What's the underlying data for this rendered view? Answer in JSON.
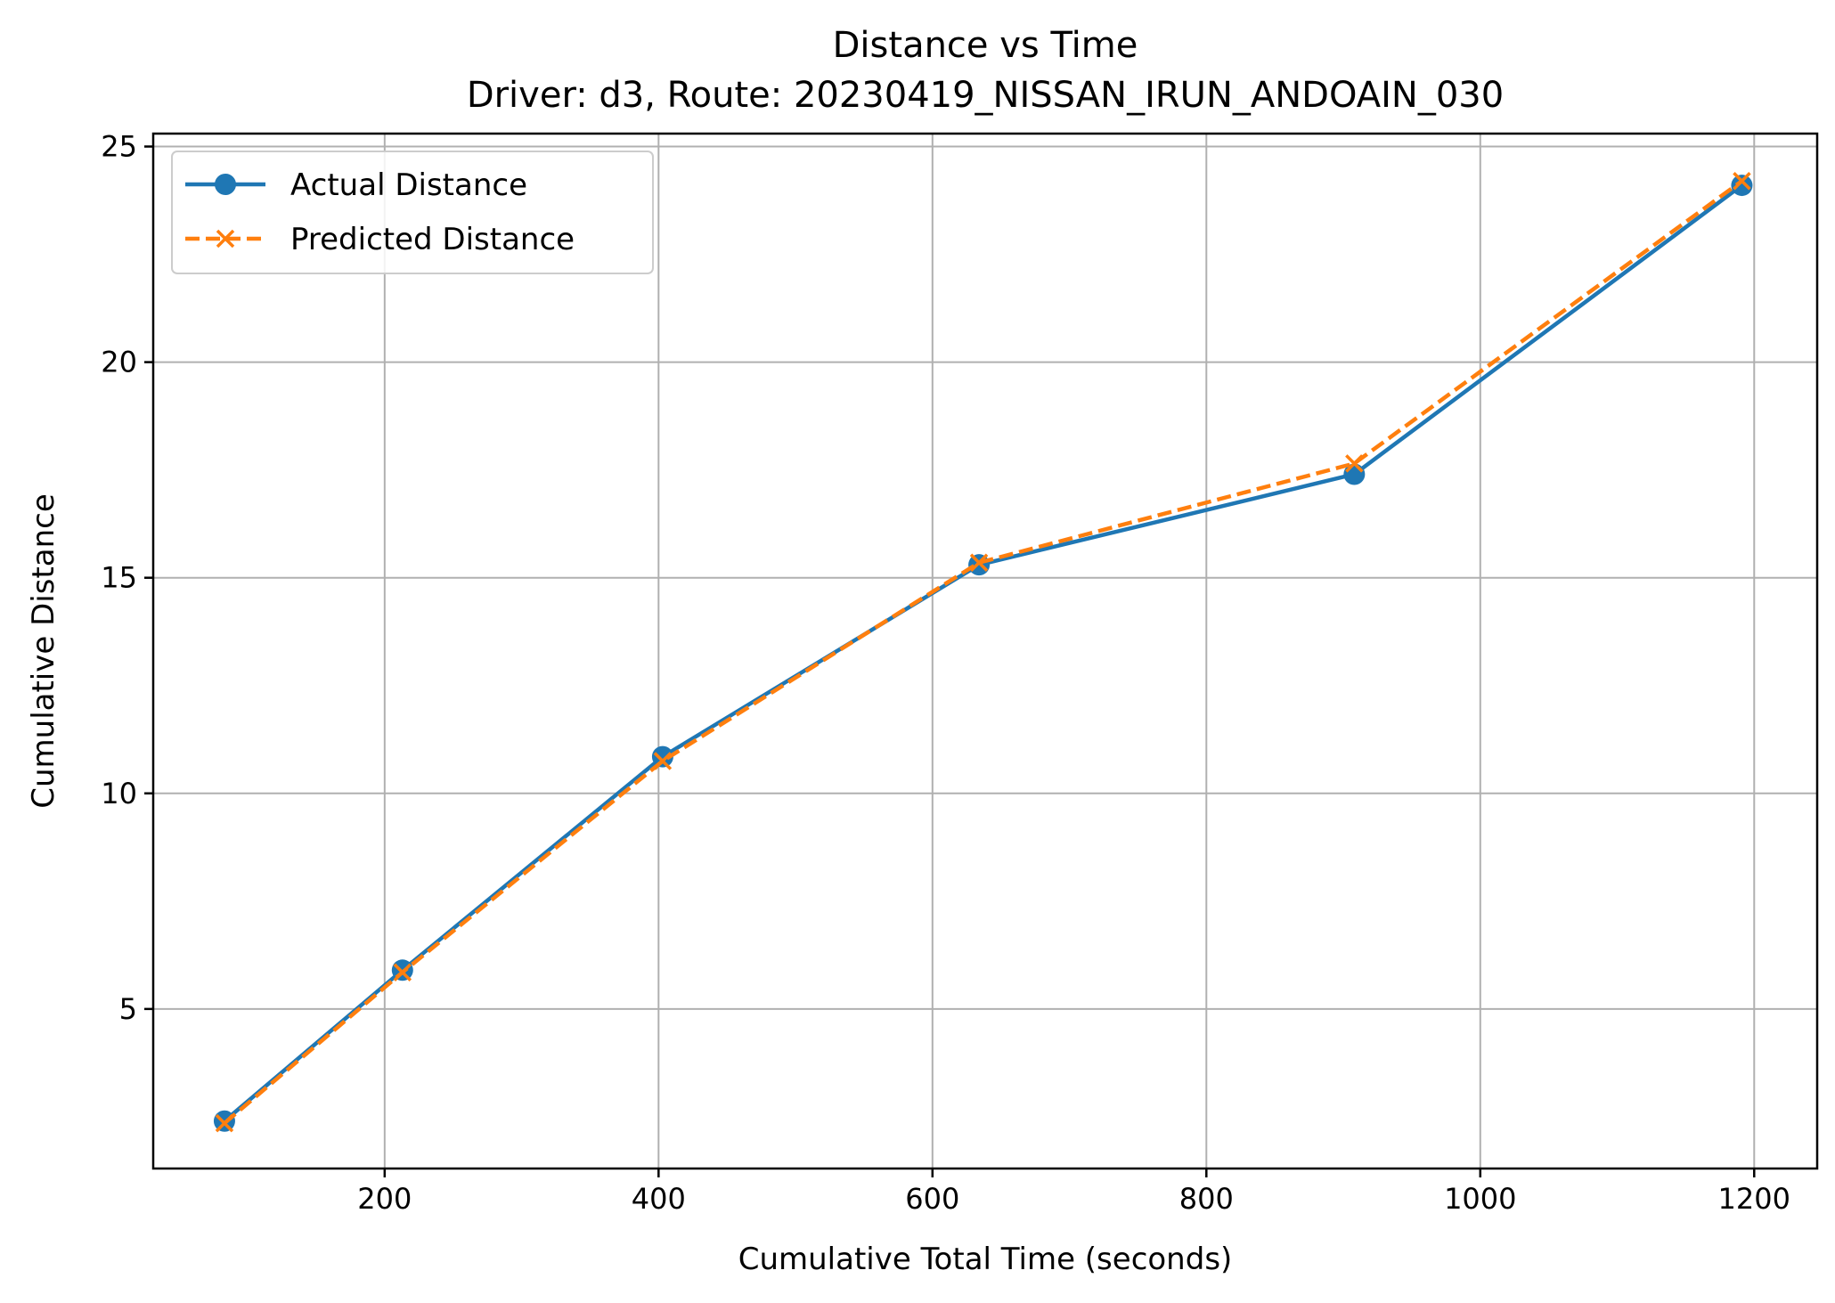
{
  "chart_data": {
    "type": "line",
    "title": "Distance vs Time",
    "subtitle": "Driver: d3, Route: 20230419_NISSAN_IRUN_ANDOAIN_030",
    "xlabel": "Cumulative Total Time (seconds)",
    "ylabel": "Cumulative Distance",
    "xlim": [
      31,
      1246
    ],
    "ylim": [
      1.3,
      25.3
    ],
    "xticks": [
      200,
      400,
      600,
      800,
      1000,
      1200
    ],
    "xtick_labels": [
      "200",
      "400",
      "600",
      "800",
      "1000",
      "1200"
    ],
    "yticks": [
      5,
      10,
      15,
      20,
      25
    ],
    "ytick_labels": [
      "5",
      "10",
      "15",
      "20",
      "25"
    ],
    "grid": true,
    "legend_position": "top-left",
    "series": [
      {
        "name": "Actual Distance",
        "color": "#1f77b4",
        "line_style": "solid",
        "marker": "circle",
        "x": [
          83,
          213,
          403,
          634,
          908,
          1191
        ],
        "y": [
          2.4,
          5.9,
          10.85,
          15.3,
          17.4,
          24.1
        ]
      },
      {
        "name": "Predicted Distance",
        "color": "#ff7f0e",
        "line_style": "dashed",
        "marker": "x",
        "x": [
          83,
          213,
          403,
          634,
          908,
          1191
        ],
        "y": [
          2.35,
          5.85,
          10.75,
          15.35,
          17.65,
          24.2
        ]
      }
    ]
  }
}
